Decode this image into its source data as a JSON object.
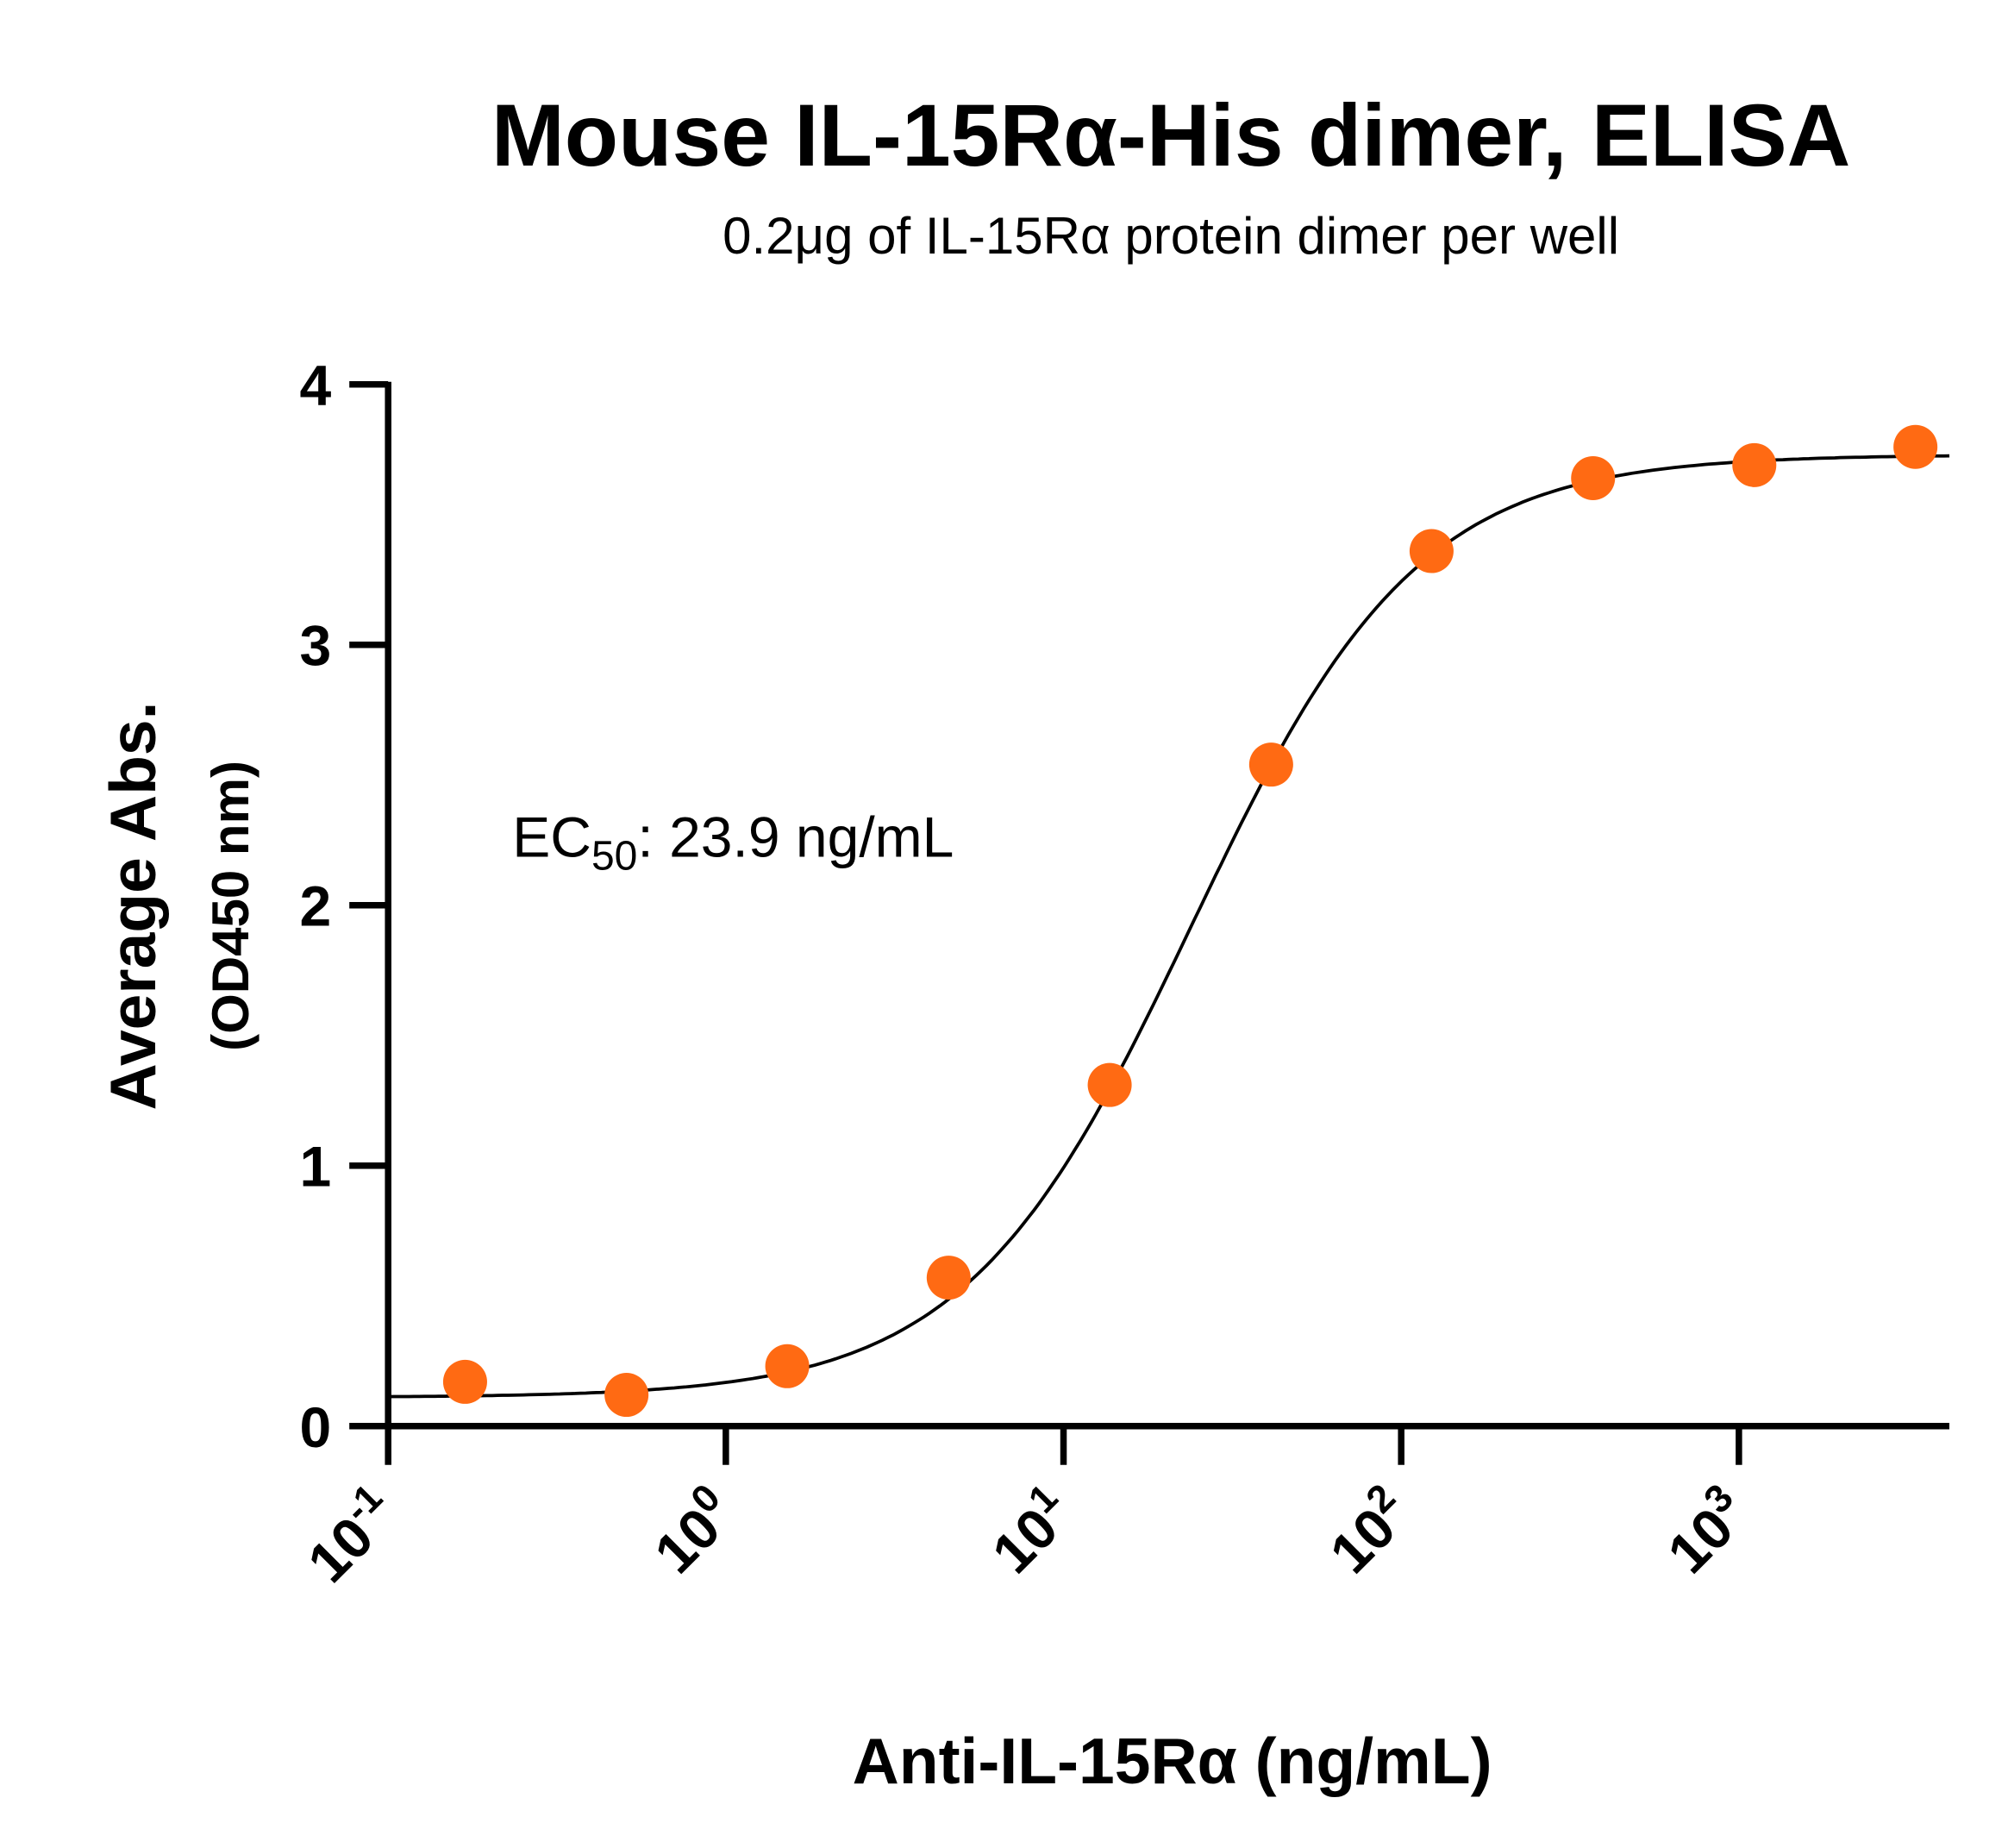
{
  "chart_data": {
    "type": "scatter",
    "title": "Mouse IL-15Rα-His dimer, ELISA",
    "subtitle": "0.2μg of IL-15Rα protein dimer per well",
    "xlabel": "Anti-IL-15Rα (ng/mL)",
    "ylabel": "Average Abs.",
    "ylabel_sub": "(OD450 nm)",
    "x_scale": "log",
    "xlim": [
      0.1,
      4200
    ],
    "ylim": [
      0,
      4
    ],
    "x_ticks": [
      {
        "base": "10",
        "exp": "-1",
        "value": 0.1
      },
      {
        "base": "10",
        "exp": "0",
        "value": 1
      },
      {
        "base": "10",
        "exp": "1",
        "value": 10
      },
      {
        "base": "10",
        "exp": "2",
        "value": 100
      },
      {
        "base": "10",
        "exp": "3",
        "value": 1000
      }
    ],
    "y_ticks": [
      "0",
      "1",
      "2",
      "3",
      "4"
    ],
    "grid": false,
    "annotation": {
      "prefix": "EC",
      "sub": "50",
      "suffix": ": 23.9 ng/mL"
    },
    "point_color": "#FF6A13",
    "curve_color": "#000000",
    "series": [
      {
        "x": [
          0.169,
          0.508,
          1.52,
          4.57,
          13.7,
          41.2,
          123,
          370,
          1111,
          3333
        ],
        "y": [
          0.17,
          0.12,
          0.23,
          0.57,
          1.31,
          2.54,
          3.36,
          3.64,
          3.69,
          3.76
        ]
      }
    ],
    "fit": {
      "model": "4PL",
      "bottom": 0.11,
      "top": 3.73,
      "ec50": 23.9,
      "hill": 1.3
    }
  }
}
